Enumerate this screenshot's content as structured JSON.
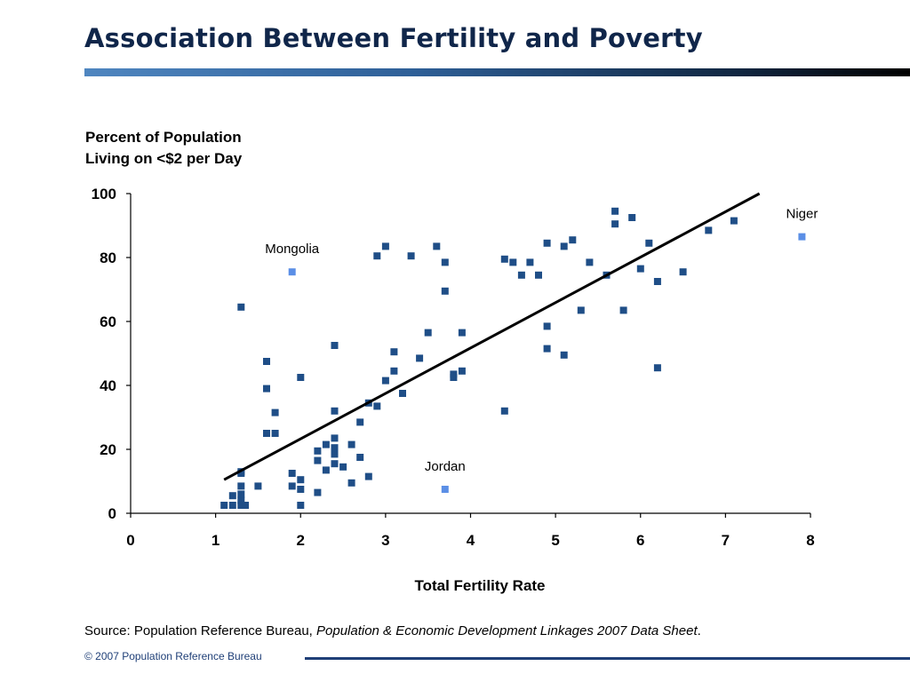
{
  "slide": {
    "title": "Association Between Fertility and Poverty",
    "source_prefix": "Source: Population Reference Bureau, ",
    "source_italic": "Population & Economic Development Linkages 2007 Data Sheet",
    "source_suffix": ".",
    "copyright": "© 2007 Population Reference Bureau"
  },
  "colors": {
    "title": "#10264a",
    "point": "#1f4e87",
    "highlight_point": "#5b8fe6",
    "trend_line": "#000000",
    "footer": "#1f3f77"
  },
  "chart_data": {
    "type": "scatter",
    "title": "",
    "ylabel_lines": [
      "Percent of Population",
      "Living on <$2 per Day"
    ],
    "xlabel": "Total Fertility Rate",
    "xlim": [
      0,
      8
    ],
    "ylim": [
      0,
      100
    ],
    "xticks": [
      0,
      1,
      2,
      3,
      4,
      5,
      6,
      7,
      8
    ],
    "yticks": [
      0,
      20,
      40,
      60,
      80,
      100
    ],
    "grid": false,
    "legend": "none",
    "trend_line": {
      "x": [
        1.1,
        7.4
      ],
      "y": [
        10.5,
        100
      ]
    },
    "points": [
      [
        1.1,
        2.5
      ],
      [
        1.2,
        2.5
      ],
      [
        1.2,
        5.5
      ],
      [
        1.3,
        2.5
      ],
      [
        1.3,
        4
      ],
      [
        1.3,
        6
      ],
      [
        1.3,
        8.5
      ],
      [
        1.3,
        12.5
      ],
      [
        1.3,
        13
      ],
      [
        1.35,
        2.5
      ],
      [
        1.5,
        8.5
      ],
      [
        1.3,
        64.5
      ],
      [
        1.6,
        25
      ],
      [
        1.6,
        39
      ],
      [
        1.6,
        47.5
      ],
      [
        1.7,
        25
      ],
      [
        1.7,
        31.5
      ],
      [
        1.9,
        8.5
      ],
      [
        1.9,
        12.5
      ],
      [
        2.0,
        2.5
      ],
      [
        2.0,
        7.5
      ],
      [
        2.0,
        10.5
      ],
      [
        2.0,
        42.5
      ],
      [
        2.2,
        6.5
      ],
      [
        2.2,
        16.5
      ],
      [
        2.2,
        19.5
      ],
      [
        2.3,
        13.5
      ],
      [
        2.3,
        21.5
      ],
      [
        2.4,
        15.5
      ],
      [
        2.4,
        18.5
      ],
      [
        2.4,
        20.5
      ],
      [
        2.4,
        23.5
      ],
      [
        2.4,
        32
      ],
      [
        2.4,
        52.5
      ],
      [
        2.5,
        14.5
      ],
      [
        2.6,
        9.5
      ],
      [
        2.6,
        21.5
      ],
      [
        2.7,
        17.5
      ],
      [
        2.7,
        28.5
      ],
      [
        2.8,
        11.5
      ],
      [
        2.8,
        34.5
      ],
      [
        2.9,
        33.5
      ],
      [
        2.9,
        80.5
      ],
      [
        3.0,
        41.5
      ],
      [
        3.0,
        83.5
      ],
      [
        3.1,
        44.5
      ],
      [
        3.1,
        50.5
      ],
      [
        3.2,
        37.5
      ],
      [
        3.3,
        80.5
      ],
      [
        3.4,
        48.5
      ],
      [
        3.5,
        56.5
      ],
      [
        3.6,
        83.5
      ],
      [
        3.7,
        69.5
      ],
      [
        3.7,
        78.5
      ],
      [
        3.8,
        42.5
      ],
      [
        3.8,
        43.5
      ],
      [
        3.9,
        44.5
      ],
      [
        3.9,
        56.5
      ],
      [
        4.4,
        32
      ],
      [
        4.4,
        79.5
      ],
      [
        4.5,
        78.5
      ],
      [
        4.6,
        74.5
      ],
      [
        4.7,
        78.5
      ],
      [
        4.8,
        74.5
      ],
      [
        4.9,
        51.5
      ],
      [
        4.9,
        58.5
      ],
      [
        4.9,
        84.5
      ],
      [
        5.1,
        49.5
      ],
      [
        5.1,
        83.5
      ],
      [
        5.2,
        85.5
      ],
      [
        5.3,
        63.5
      ],
      [
        5.4,
        78.5
      ],
      [
        5.6,
        74.5
      ],
      [
        5.7,
        90.5
      ],
      [
        5.7,
        94.5
      ],
      [
        5.8,
        63.5
      ],
      [
        5.9,
        92.5
      ],
      [
        6.0,
        76.5
      ],
      [
        6.1,
        84.5
      ],
      [
        6.2,
        45.5
      ],
      [
        6.2,
        72.5
      ],
      [
        6.5,
        75.5
      ],
      [
        6.8,
        88.5
      ],
      [
        7.1,
        91.5
      ]
    ],
    "highlighted": [
      {
        "label": "Mongolia",
        "x": 1.9,
        "y": 75.5
      },
      {
        "label": "Jordan",
        "x": 3.7,
        "y": 7.5
      },
      {
        "label": "Niger",
        "x": 7.9,
        "y": 86.5
      }
    ]
  }
}
